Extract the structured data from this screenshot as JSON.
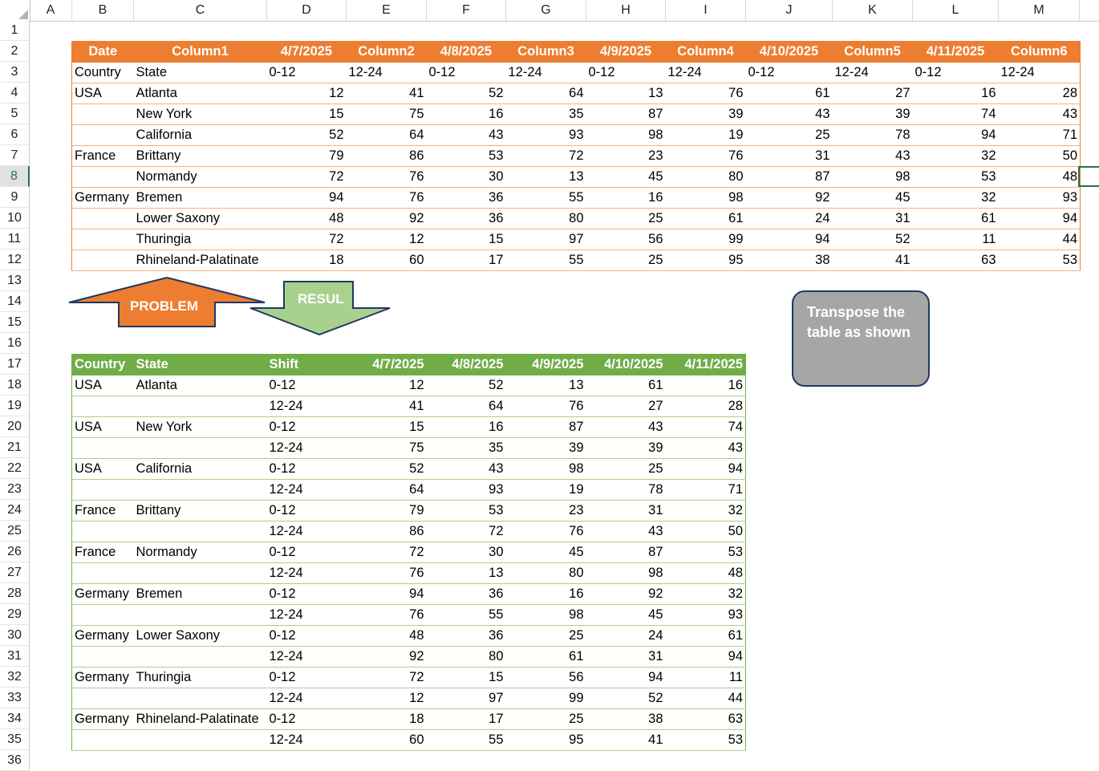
{
  "columns": [
    "A",
    "B",
    "C",
    "D",
    "E",
    "F",
    "G",
    "H",
    "I",
    "J",
    "K",
    "L",
    "M"
  ],
  "rows": [
    "1",
    "2",
    "3",
    "4",
    "5",
    "6",
    "7",
    "8",
    "9",
    "10",
    "11",
    "12",
    "13",
    "14",
    "15",
    "16",
    "17",
    "18",
    "19",
    "20",
    "21",
    "22",
    "23",
    "24",
    "25",
    "26",
    "27",
    "28",
    "29",
    "30",
    "31",
    "32",
    "33",
    "34",
    "35",
    "36"
  ],
  "selected_row": "8",
  "source_table": {
    "header": [
      "Date",
      "Column1",
      "4/7/2025",
      "Column2",
      "4/8/2025",
      "Column3",
      "4/9/2025",
      "Column4",
      "4/10/2025",
      "Column5",
      "4/11/2025",
      "Column6"
    ],
    "subheader": [
      "Country",
      "State",
      "0-12",
      "12-24",
      "0-12",
      "12-24",
      "0-12",
      "12-24",
      "0-12",
      "12-24",
      "0-12",
      "12-24"
    ],
    "rows": [
      [
        "USA",
        "Atlanta",
        "12",
        "41",
        "52",
        "64",
        "13",
        "76",
        "61",
        "27",
        "16",
        "28"
      ],
      [
        "",
        "New York",
        "15",
        "75",
        "16",
        "35",
        "87",
        "39",
        "43",
        "39",
        "74",
        "43"
      ],
      [
        "",
        "California",
        "52",
        "64",
        "43",
        "93",
        "98",
        "19",
        "25",
        "78",
        "94",
        "71"
      ],
      [
        "France",
        "Brittany",
        "79",
        "86",
        "53",
        "72",
        "23",
        "76",
        "31",
        "43",
        "32",
        "50"
      ],
      [
        "",
        "Normandy",
        "72",
        "76",
        "30",
        "13",
        "45",
        "80",
        "87",
        "98",
        "53",
        "48"
      ],
      [
        "Germany",
        "Bremen",
        "94",
        "76",
        "36",
        "55",
        "16",
        "98",
        "92",
        "45",
        "32",
        "93"
      ],
      [
        "",
        "Lower Saxony",
        "48",
        "92",
        "36",
        "80",
        "25",
        "61",
        "24",
        "31",
        "61",
        "94"
      ],
      [
        "",
        "Thuringia",
        "72",
        "12",
        "15",
        "97",
        "56",
        "99",
        "94",
        "52",
        "11",
        "44"
      ],
      [
        "",
        "Rhineland-Palatinate",
        "18",
        "60",
        "17",
        "55",
        "25",
        "95",
        "38",
        "41",
        "63",
        "53"
      ]
    ]
  },
  "shapes": {
    "problem_label": "PROBLEM",
    "result_label": "RESUL",
    "note_text": "Transpose the table as shown",
    "colors": {
      "orange": "#ed7d31",
      "green": "#70ad47",
      "light_green": "#a9d18e",
      "note_gray": "#a6a6a6",
      "note_border": "#203864"
    }
  },
  "result_table": {
    "header": [
      "Country",
      "State",
      "Shift",
      "4/7/2025",
      "4/8/2025",
      "4/9/2025",
      "4/10/2025",
      "4/11/2025"
    ],
    "rows": [
      [
        "USA",
        "Atlanta",
        "0-12",
        "12",
        "52",
        "13",
        "61",
        "16"
      ],
      [
        "",
        "",
        "12-24",
        "41",
        "64",
        "76",
        "27",
        "28"
      ],
      [
        "USA",
        "New York",
        "0-12",
        "15",
        "16",
        "87",
        "43",
        "74"
      ],
      [
        "",
        "",
        "12-24",
        "75",
        "35",
        "39",
        "39",
        "43"
      ],
      [
        "USA",
        "California",
        "0-12",
        "52",
        "43",
        "98",
        "25",
        "94"
      ],
      [
        "",
        "",
        "12-24",
        "64",
        "93",
        "19",
        "78",
        "71"
      ],
      [
        "France",
        "Brittany",
        "0-12",
        "79",
        "53",
        "23",
        "31",
        "32"
      ],
      [
        "",
        "",
        "12-24",
        "86",
        "72",
        "76",
        "43",
        "50"
      ],
      [
        "France",
        "Normandy",
        "0-12",
        "72",
        "30",
        "45",
        "87",
        "53"
      ],
      [
        "",
        "",
        "12-24",
        "76",
        "13",
        "80",
        "98",
        "48"
      ],
      [
        "Germany",
        "Bremen",
        "0-12",
        "94",
        "36",
        "16",
        "92",
        "32"
      ],
      [
        "",
        "",
        "12-24",
        "76",
        "55",
        "98",
        "45",
        "93"
      ],
      [
        "Germany",
        "Lower Saxony",
        "0-12",
        "48",
        "36",
        "25",
        "24",
        "61"
      ],
      [
        "",
        "",
        "12-24",
        "92",
        "80",
        "61",
        "31",
        "94"
      ],
      [
        "Germany",
        "Thuringia",
        "0-12",
        "72",
        "15",
        "56",
        "94",
        "11"
      ],
      [
        "",
        "",
        "12-24",
        "12",
        "97",
        "99",
        "52",
        "44"
      ],
      [
        "Germany",
        "Rhineland-Palatinate",
        "0-12",
        "18",
        "17",
        "25",
        "38",
        "63"
      ],
      [
        "",
        "",
        "12-24",
        "60",
        "55",
        "95",
        "41",
        "53"
      ]
    ]
  }
}
